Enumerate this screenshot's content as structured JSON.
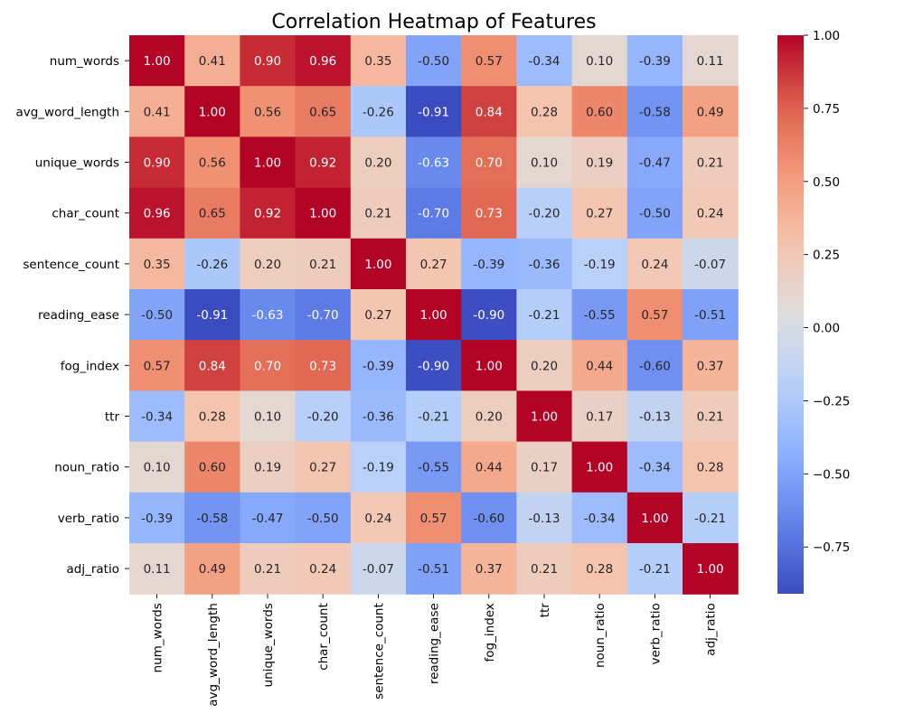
{
  "chart_data": {
    "type": "heatmap",
    "title": "Correlation Heatmap of Features",
    "xlabel": "",
    "ylabel": "",
    "labels": [
      "num_words",
      "avg_word_length",
      "unique_words",
      "char_count",
      "sentence_count",
      "reading_ease",
      "fog_index",
      "ttr",
      "noun_ratio",
      "verb_ratio",
      "adj_ratio"
    ],
    "matrix": [
      [
        1.0,
        0.41,
        0.9,
        0.96,
        0.35,
        -0.5,
        0.57,
        -0.34,
        0.1,
        -0.39,
        0.11
      ],
      [
        0.41,
        1.0,
        0.56,
        0.65,
        -0.26,
        -0.91,
        0.84,
        0.28,
        0.6,
        -0.58,
        0.49
      ],
      [
        0.9,
        0.56,
        1.0,
        0.92,
        0.2,
        -0.63,
        0.7,
        0.1,
        0.19,
        -0.47,
        0.21
      ],
      [
        0.96,
        0.65,
        0.92,
        1.0,
        0.21,
        -0.7,
        0.73,
        -0.2,
        0.27,
        -0.5,
        0.24
      ],
      [
        0.35,
        -0.26,
        0.2,
        0.21,
        1.0,
        0.27,
        -0.39,
        -0.36,
        -0.19,
        0.24,
        -0.07
      ],
      [
        -0.5,
        -0.91,
        -0.63,
        -0.7,
        0.27,
        1.0,
        -0.9,
        -0.21,
        -0.55,
        0.57,
        -0.51
      ],
      [
        0.57,
        0.84,
        0.7,
        0.73,
        -0.39,
        -0.9,
        1.0,
        0.2,
        0.44,
        -0.6,
        0.37
      ],
      [
        -0.34,
        0.28,
        0.1,
        -0.2,
        -0.36,
        -0.21,
        0.2,
        1.0,
        0.17,
        -0.13,
        0.21
      ],
      [
        0.1,
        0.6,
        0.19,
        0.27,
        -0.19,
        -0.55,
        0.44,
        0.17,
        1.0,
        -0.34,
        0.28
      ],
      [
        -0.39,
        -0.58,
        -0.47,
        -0.5,
        0.24,
        0.57,
        -0.6,
        -0.13,
        -0.34,
        1.0,
        -0.21
      ],
      [
        0.11,
        0.49,
        0.21,
        0.24,
        -0.07,
        -0.51,
        0.37,
        0.21,
        0.28,
        -0.21,
        1.0
      ]
    ],
    "colormap": "coolwarm",
    "vmin": -0.91,
    "vmax": 1.0,
    "colorbar_ticks": [
      1.0,
      0.75,
      0.5,
      0.25,
      0.0,
      -0.25,
      -0.5,
      -0.75
    ],
    "colorbar_tick_labels": [
      "1.00",
      "0.75",
      "0.50",
      "0.25",
      "0.00",
      "−0.25",
      "−0.50",
      "−0.75"
    ],
    "annotation_format": "2 decimals",
    "legend": "colorbar right"
  }
}
